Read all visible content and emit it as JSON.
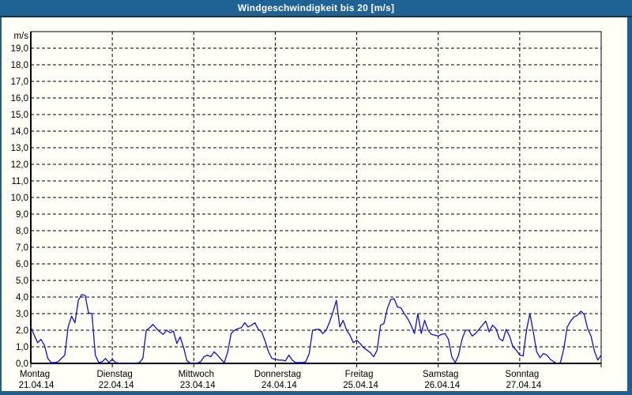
{
  "window": {
    "title": "Windgeschwindigkeit bis 20 [m/s]"
  },
  "colors": {
    "titlebar_bg": "#1f6394",
    "titlebar_text": "#ffffff",
    "frame": "#1f5e90",
    "plot_background": "#fffef7",
    "grid": "#000000",
    "axis": "#000000",
    "series_line": "#0f0fd6",
    "label_text": "#000000"
  },
  "chart_data": {
    "type": "line",
    "title": "Windgeschwindigkeit bis 20 [m/s]",
    "ylabel": "m/s",
    "xlabel": "",
    "ylim": [
      0,
      20
    ],
    "ytick_interval": 1.0,
    "ytick_labels": [
      "0,0",
      "1,0",
      "2,0",
      "3,0",
      "4,0",
      "5,0",
      "6,0",
      "7,0",
      "8,0",
      "9,0",
      "10,0",
      "11,0",
      "12,0",
      "13,0",
      "14,0",
      "15,0",
      "16,0",
      "17,0",
      "18,0",
      "19,0"
    ],
    "grid": "dashed horizontal lines at every 1.0 m/s, dashed vertical lines at day boundaries",
    "legend": "none",
    "sampling": "hourly values estimated from the plotted curve, 24 per day",
    "unit": "m/s",
    "days": [
      {
        "name": "Montag",
        "date": "21.04.14",
        "values": [
          2.2,
          1.7,
          1.25,
          1.45,
          1.1,
          0.3,
          0.05,
          0.05,
          0.1,
          0.3,
          0.5,
          2.2,
          2.85,
          2.45,
          3.8,
          4.15,
          4.1,
          3.05,
          3.0,
          0.5,
          0.05,
          0.1,
          0.3,
          0.05
        ]
      },
      {
        "name": "Dienstag",
        "date": "22.04.14",
        "values": [
          0.25,
          0.05,
          0.02,
          0.02,
          0.02,
          0.02,
          0.02,
          0.02,
          0.05,
          0.3,
          2.0,
          2.15,
          2.35,
          2.1,
          1.9,
          1.75,
          2.0,
          1.85,
          1.95,
          1.2,
          1.6,
          0.95,
          0.15,
          0.02
        ]
      },
      {
        "name": "Mittwoch",
        "date": "23.04.14",
        "values": [
          0.02,
          0.02,
          0.1,
          0.4,
          0.5,
          0.4,
          0.7,
          0.5,
          0.25,
          0.05,
          0.7,
          1.8,
          2.0,
          2.1,
          2.15,
          2.45,
          2.2,
          2.3,
          2.45,
          2.05,
          1.9,
          1.35,
          0.7,
          0.3
        ]
      },
      {
        "name": "Donnerstag",
        "date": "24.04.14",
        "values": [
          0.25,
          0.2,
          0.2,
          0.15,
          0.5,
          0.2,
          0.05,
          0.05,
          0.05,
          0.1,
          0.6,
          2.0,
          2.05,
          2.05,
          1.8,
          2.0,
          2.5,
          3.1,
          3.8,
          2.2,
          2.6,
          2.0,
          1.7,
          1.25
        ]
      },
      {
        "name": "Freitag",
        "date": "25.04.14",
        "values": [
          1.4,
          1.2,
          0.95,
          0.8,
          0.65,
          0.4,
          0.8,
          2.3,
          2.4,
          3.3,
          3.85,
          3.9,
          3.4,
          3.35,
          3.0,
          2.7,
          2.3,
          1.8,
          3.0,
          1.8,
          2.6,
          2.0,
          1.75,
          1.7
        ]
      },
      {
        "name": "Samstag",
        "date": "26.04.14",
        "values": [
          1.65,
          1.75,
          1.8,
          1.45,
          0.4,
          0.05,
          0.5,
          1.45,
          2.0,
          2.0,
          1.65,
          1.8,
          2.05,
          2.3,
          2.55,
          1.9,
          2.3,
          2.1,
          1.5,
          1.35,
          2.05,
          1.65,
          1.0,
          0.8
        ]
      },
      {
        "name": "Sonntag",
        "date": "27.04.14",
        "values": [
          0.5,
          0.45,
          2.0,
          3.0,
          1.9,
          0.7,
          0.35,
          0.6,
          0.5,
          0.25,
          0.1,
          0.0,
          0.05,
          0.9,
          2.2,
          2.55,
          2.8,
          2.9,
          3.15,
          2.95,
          2.1,
          1.65,
          0.75,
          0.2
        ]
      }
    ],
    "final_value": 0.5
  }
}
